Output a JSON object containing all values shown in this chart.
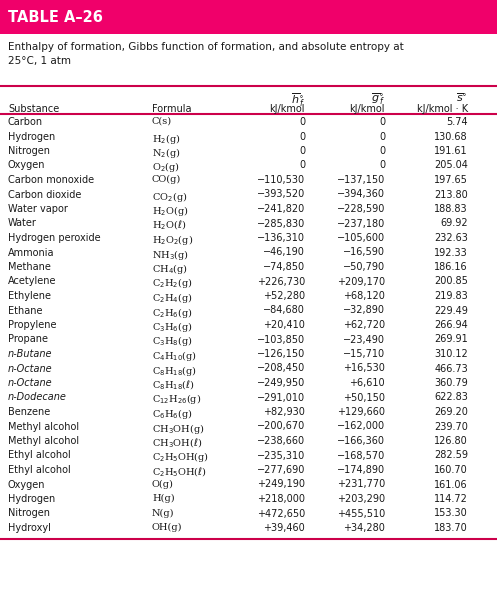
{
  "title": "TABLE A–26",
  "subtitle": "Enthalpy of formation, Gibbs function of formation, and absolute entropy at\n25°C, 1 atm",
  "header_bg": "#F0006A",
  "header_text_color": "#FFFFFF",
  "separator_color": "#CC004A",
  "text_color": "#1a1a1a",
  "bg_color": "#FFFFFF",
  "italic_substances": [
    "n-Butane",
    "n-Octane",
    "n-Dodecane"
  ],
  "rows": [
    [
      "Carbon",
      "C(s)",
      "0",
      "0",
      "5.74"
    ],
    [
      "Hydrogen",
      "H$_2$(g)",
      "0",
      "0",
      "130.68"
    ],
    [
      "Nitrogen",
      "N$_2$(g)",
      "0",
      "0",
      "191.61"
    ],
    [
      "Oxygen",
      "O$_2$(g)",
      "0",
      "0",
      "205.04"
    ],
    [
      "Carbon monoxide",
      "CO(g)",
      "−110,530",
      "−137,150",
      "197.65"
    ],
    [
      "Carbon dioxide",
      "CO$_2$(g)",
      "−393,520",
      "−394,360",
      "213.80"
    ],
    [
      "Water vapor",
      "H$_2$O(g)",
      "−241,820",
      "−228,590",
      "188.83"
    ],
    [
      "Water",
      "H$_2$O($\\ell$)",
      "−285,830",
      "−237,180",
      "69.92"
    ],
    [
      "Hydrogen peroxide",
      "H$_2$O$_2$(g)",
      "−136,310",
      "−105,600",
      "232.63"
    ],
    [
      "Ammonia",
      "NH$_3$(g)",
      "−46,190",
      "−16,590",
      "192.33"
    ],
    [
      "Methane",
      "CH$_4$(g)",
      "−74,850",
      "−50,790",
      "186.16"
    ],
    [
      "Acetylene",
      "C$_2$H$_2$(g)",
      "+226,730",
      "+209,170",
      "200.85"
    ],
    [
      "Ethylene",
      "C$_2$H$_4$(g)",
      "+52,280",
      "+68,120",
      "219.83"
    ],
    [
      "Ethane",
      "C$_2$H$_6$(g)",
      "−84,680",
      "−32,890",
      "229.49"
    ],
    [
      "Propylene",
      "C$_3$H$_6$(g)",
      "+20,410",
      "+62,720",
      "266.94"
    ],
    [
      "Propane",
      "C$_3$H$_8$(g)",
      "−103,850",
      "−23,490",
      "269.91"
    ],
    [
      "n-Butane",
      "C$_4$H$_{10}$(g)",
      "−126,150",
      "−15,710",
      "310.12"
    ],
    [
      "n-Octane",
      "C$_8$H$_{18}$(g)",
      "−208,450",
      "+16,530",
      "466.73"
    ],
    [
      "n-Octane",
      "C$_8$H$_{18}$($\\ell$)",
      "−249,950",
      "+6,610",
      "360.79"
    ],
    [
      "n-Dodecane",
      "C$_{12}$H$_{26}$(g)",
      "−291,010",
      "+50,150",
      "622.83"
    ],
    [
      "Benzene",
      "C$_6$H$_6$(g)",
      "+82,930",
      "+129,660",
      "269.20"
    ],
    [
      "Methyl alcohol",
      "CH$_3$OH(g)",
      "−200,670",
      "−162,000",
      "239.70"
    ],
    [
      "Methyl alcohol",
      "CH$_3$OH($\\ell$)",
      "−238,660",
      "−166,360",
      "126.80"
    ],
    [
      "Ethyl alcohol",
      "C$_2$H$_5$OH(g)",
      "−235,310",
      "−168,570",
      "282.59"
    ],
    [
      "Ethyl alcohol",
      "C$_2$H$_5$OH($\\ell$)",
      "−277,690",
      "−174,890",
      "160.70"
    ],
    [
      "Oxygen",
      "O(g)",
      "+249,190",
      "+231,770",
      "161.06"
    ],
    [
      "Hydrogen",
      "H(g)",
      "+218,000",
      "+203,290",
      "114.72"
    ],
    [
      "Nitrogen",
      "N(g)",
      "+472,650",
      "+455,510",
      "153.30"
    ],
    [
      "Hydroxyl",
      "OH(g)",
      "+39,460",
      "+34,280",
      "183.70"
    ]
  ]
}
